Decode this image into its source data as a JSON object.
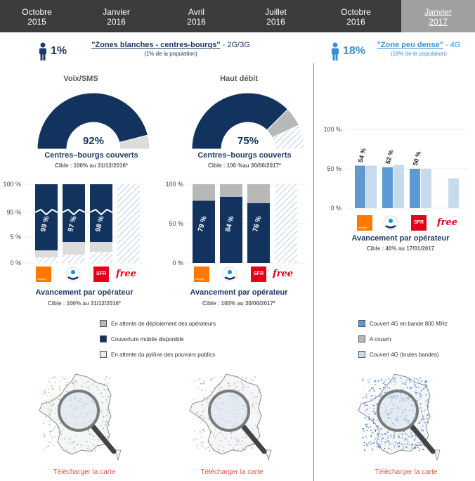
{
  "timeline": [
    {
      "month": "Octobre",
      "year": "2015",
      "active": false
    },
    {
      "month": "Janvier",
      "year": "2016",
      "active": false
    },
    {
      "month": "Avril",
      "year": "2016",
      "active": false
    },
    {
      "month": "Juillet",
      "year": "2016",
      "active": false
    },
    {
      "month": "Octobre",
      "year": "2016",
      "active": false
    },
    {
      "month": "Janvier",
      "year": "2017",
      "active": true
    }
  ],
  "zone_left": {
    "percent": "1%",
    "title_link": "\"Zones blanches - centres-bourgs\"",
    "title_rest": " - 2G/3G",
    "subtitle": "(1% de la population)"
  },
  "zone_right": {
    "percent": "18%",
    "title_link": "\"Zone peu dense\"",
    "title_rest": " - 4G",
    "subtitle": "(18% de la population)"
  },
  "voix": {
    "heading": "Voix/SMS",
    "gauge_pct": "92%",
    "gauge_caption": "Centres–bourgs couverts",
    "gauge_target": "Cible : 100% au 31/12/2016*",
    "op_caption": "Avancement par opérateur",
    "op_target": "Cible : 100% au 31/12/2016*"
  },
  "haut_debit": {
    "heading": "Haut débit",
    "gauge_pct": "75%",
    "gauge_caption": "Centres–bourgs couverts",
    "gauge_target": "Cible : 100 %au 30/06/2017*",
    "op_caption": "Avancement par opérateur",
    "op_target": "Cible : 100% au 30/06/2017*"
  },
  "zone_4g": {
    "op_caption": "Avancement par opérateur",
    "op_target": "Cible : 40% au 17/01/2017"
  },
  "operators": {
    "orange_text": "orange",
    "sfr_text": "SFR",
    "free_text": "free"
  },
  "legend_left": [
    {
      "label": "En attente de déploiement des opérateurs",
      "color": "#b8b8b8",
      "hatched": false
    },
    {
      "label": "Couverture mobile disponible",
      "color": "#13335f",
      "hatched": false
    },
    {
      "label": "En attente du pylône des pouvoirs publics",
      "color": "#ffffff",
      "hatched": true
    }
  ],
  "legend_right": [
    {
      "label": "Couvert 4G en bande 800 MHz",
      "color": "#5b9bd5",
      "hatched": false
    },
    {
      "label": "A couvrir",
      "color": "#b8b8b8",
      "hatched": false
    },
    {
      "label": "Couvert 4G (toutes bandes)",
      "color": "#c6dcee",
      "hatched": false
    }
  ],
  "download_label": "Télécharger la carte",
  "chart_data": [
    {
      "type": "pie",
      "title": "Voix/SMS",
      "center_label": "92%",
      "values": [
        92,
        8
      ],
      "colors": [
        "#13335f",
        "#dcdcdc"
      ]
    },
    {
      "type": "pie",
      "title": "Haut débit",
      "center_label": "75%",
      "values": [
        75,
        11,
        14
      ],
      "colors": [
        "#13335f",
        "#b8b8b8",
        "hatched"
      ]
    },
    {
      "type": "bar",
      "title": "Voix/SMS - Avancement par opérateur",
      "categories": [
        "orange",
        "Bouygues",
        "SFR",
        "free"
      ],
      "y_ticks": [
        "100 %",
        "95 %",
        "5 %",
        "0 %"
      ],
      "series": [
        {
          "name": "Couverture mobile disponible",
          "values": [
            99,
            97,
            98,
            0
          ],
          "labels": [
            "99 %",
            "97 %",
            "98 %",
            ""
          ]
        },
        {
          "name": "En attente de déploiement des opérateurs",
          "values": [
            1,
            3,
            2,
            0
          ]
        },
        {
          "name": "En attente du pylône des pouvoirs publics",
          "values": [
            0,
            0,
            0,
            100
          ]
        }
      ]
    },
    {
      "type": "bar",
      "title": "Haut débit - Avancement par opérateur",
      "categories": [
        "orange",
        "Bouygues",
        "SFR",
        "free"
      ],
      "y_ticks": [
        "100 %",
        "50 %",
        "0 %"
      ],
      "ylim": [
        0,
        100
      ],
      "series": [
        {
          "name": "Couverture mobile disponible",
          "values": [
            79,
            84,
            76,
            0
          ],
          "labels": [
            "79 %",
            "84 %",
            "76 %",
            ""
          ]
        },
        {
          "name": "En attente de déploiement des opérateurs",
          "values": [
            21,
            16,
            24,
            0
          ]
        },
        {
          "name": "En attente du pylône des pouvoirs publics",
          "values": [
            0,
            0,
            0,
            100
          ]
        }
      ]
    },
    {
      "type": "bar",
      "title": "Zone peu dense 4G - Avancement par opérateur",
      "categories": [
        "orange",
        "Bouygues",
        "SFR",
        "free"
      ],
      "y_ticks": [
        "100 %",
        "50 %",
        "0 %"
      ],
      "ylim": [
        0,
        100
      ],
      "series": [
        {
          "name": "Couvert 4G en bande 800 MHz",
          "values": [
            54,
            52,
            50,
            0
          ],
          "labels": [
            "54 %",
            "52 %",
            "50 %",
            ""
          ]
        },
        {
          "name": "Couvert 4G (toutes bandes)",
          "values": [
            54,
            55,
            50,
            38
          ]
        }
      ]
    }
  ]
}
